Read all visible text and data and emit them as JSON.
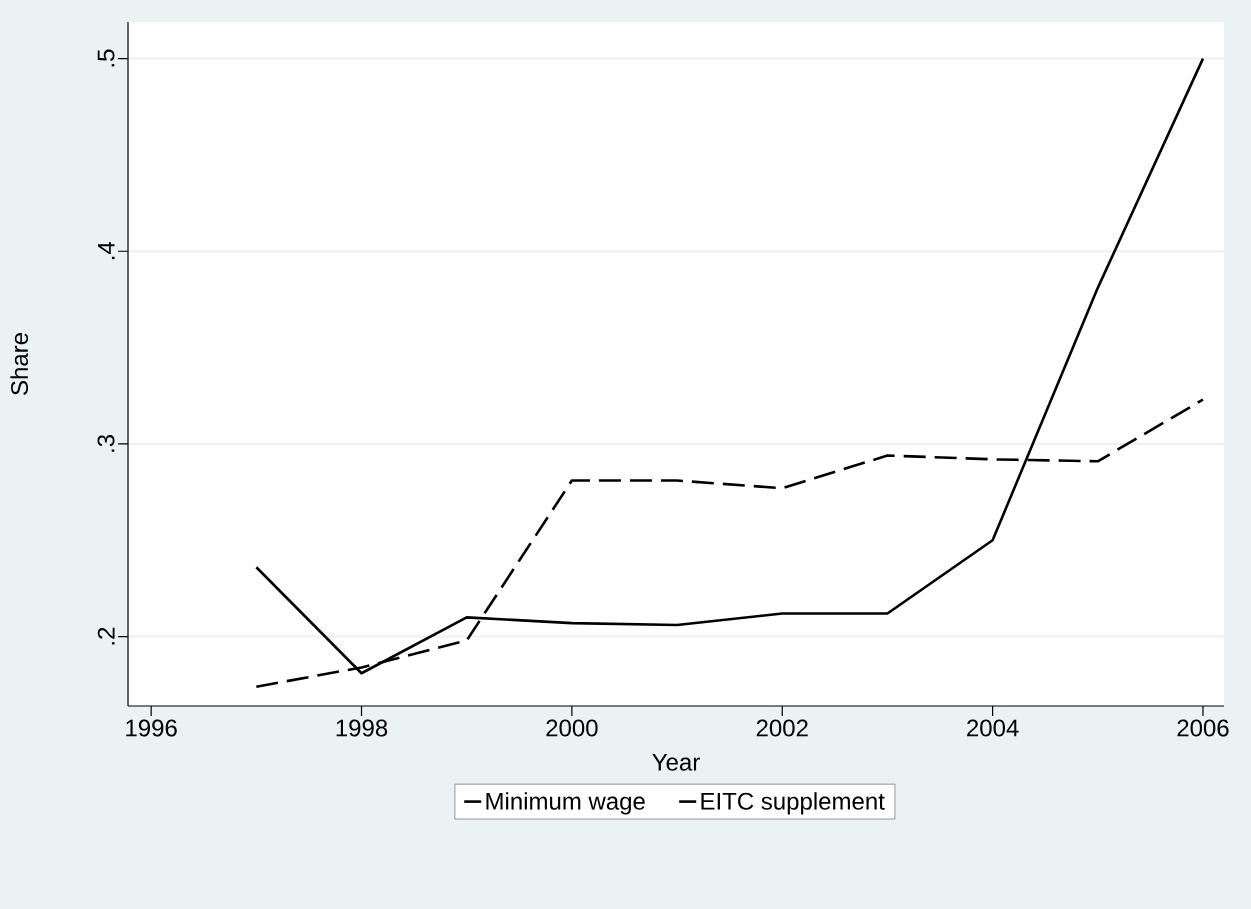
{
  "chart_data": {
    "type": "line",
    "xlabel": "Year",
    "ylabel": "Share",
    "x": [
      1997,
      1998,
      1999,
      2000,
      2001,
      2002,
      2003,
      2004,
      2005,
      2006
    ],
    "series": [
      {
        "name": "Minimum wage",
        "color": "#000000",
        "line_style": "solid",
        "values": [
          0.236,
          0.181,
          0.21,
          0.207,
          0.206,
          0.212,
          0.212,
          0.25,
          0.381,
          0.5
        ]
      },
      {
        "name": "EITC supplement",
        "color": "#000000",
        "line_style": "dashed",
        "values": [
          0.174,
          0.184,
          0.198,
          0.281,
          0.281,
          0.277,
          0.294,
          0.292,
          0.291,
          0.323
        ]
      }
    ],
    "xlim": [
      1995.78,
      2006.2
    ],
    "ylim": [
      0.164,
      0.519
    ],
    "xticks": [
      1996,
      1998,
      2000,
      2002,
      2004,
      2006
    ],
    "yticks": [
      {
        "value": 0.2,
        "label": ".2"
      },
      {
        "value": 0.3,
        "label": ".3"
      },
      {
        "value": 0.4,
        "label": ".4"
      },
      {
        "value": 0.5,
        "label": ".5"
      }
    ],
    "grid": "y",
    "legend": "bottom"
  }
}
